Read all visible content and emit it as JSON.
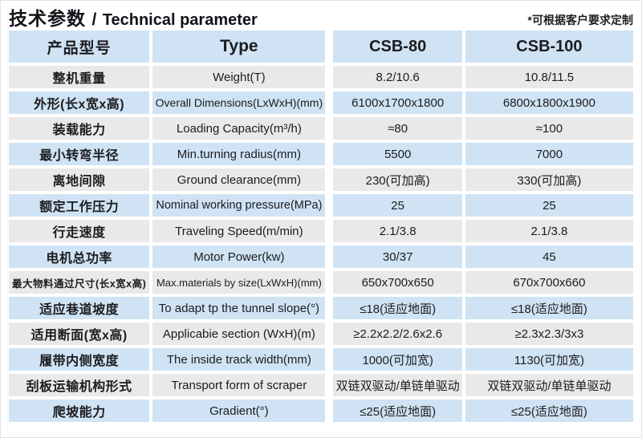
{
  "title": {
    "cn": "技术参数",
    "sep": "/",
    "en": "Technical parameter"
  },
  "note": "*可根据客户要求定制",
  "colors": {
    "row_blue": "#cfe3f4",
    "row_gray": "#e9e9e9",
    "text": "#1c1c1e",
    "title": "#121218"
  },
  "table": {
    "header": {
      "model_cn": "产品型号",
      "type": "Type",
      "csb80": "CSB-80",
      "csb100": "CSB-100"
    },
    "rows": [
      {
        "cn": "整机重量",
        "en": "Weight(T)",
        "v80": "8.2/10.6",
        "v100": "10.8/11.5"
      },
      {
        "cn": "外形(长x宽x高)",
        "en": "Overall Dimensions(LxWxH)(mm)",
        "v80": "6100x1700x1800",
        "v100": "6800x1800x1900"
      },
      {
        "cn": "装载能力",
        "en": "Loading Capacity(m³/h)",
        "v80": "≈80",
        "v100": "≈100"
      },
      {
        "cn": "最小转弯半径",
        "en": "Min.turning radius(mm)",
        "v80": "5500",
        "v100": "7000"
      },
      {
        "cn": "离地间隙",
        "en": "Ground clearance(mm)",
        "v80": "230(可加高)",
        "v100": "330(可加高)"
      },
      {
        "cn": "额定工作压力",
        "en": "Nominal working pressure(MPa)",
        "v80": "25",
        "v100": "25"
      },
      {
        "cn": "行走速度",
        "en": "Traveling Speed(m/min)",
        "v80": "2.1/3.8",
        "v100": "2.1/3.8"
      },
      {
        "cn": "电机总功率",
        "en": "Motor Power(kw)",
        "v80": "30/37",
        "v100": "45"
      },
      {
        "cn": "最大物料通过尺寸(长x宽x高)",
        "en": "Max.materials by size(LxWxH)(mm)",
        "v80": "650x700x650",
        "v100": "670x700x660"
      },
      {
        "cn": "适应巷道坡度",
        "en": "To adapt tp the tunnel slope(°)",
        "v80": "≤18(适应地面)",
        "v100": "≤18(适应地面)"
      },
      {
        "cn": "适用断面(宽x高)",
        "en": "Applicabie section (WxH)(m)",
        "v80": "≥2.2x2.2/2.6x2.6",
        "v100": "≥2.3x2.3/3x3"
      },
      {
        "cn": "履带内侧宽度",
        "en": "The inside track width(mm)",
        "v80": "1000(可加宽)",
        "v100": "1130(可加宽)"
      },
      {
        "cn": "刮板运输机构形式",
        "en": "Transport form of scraper",
        "v80": "双链双驱动/单链单驱动",
        "v100": "双链双驱动/单链单驱动"
      },
      {
        "cn": "爬坡能力",
        "en": "Gradient(°)",
        "v80": "≤25(适应地面)",
        "v100": "≤25(适应地面)"
      }
    ]
  }
}
